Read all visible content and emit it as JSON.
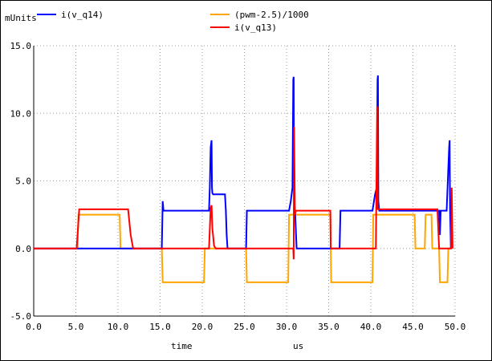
{
  "chart_data": {
    "type": "line",
    "ylabel": "mUnits",
    "xlabel": "time",
    "xunit": "us",
    "xlim": [
      0,
      50
    ],
    "ylim": [
      -5,
      15
    ],
    "xticks": [
      0,
      5,
      10,
      15,
      20,
      25,
      30,
      35,
      40,
      45,
      50
    ],
    "yticks": [
      -5,
      0,
      5,
      10,
      15
    ],
    "xtick_labels": [
      "0.0",
      "5.0",
      "10.0",
      "15.0",
      "20.0",
      "25.0",
      "30.0",
      "35.0",
      "40.0",
      "45.0",
      "50.0"
    ],
    "ytick_labels": [
      "-5.0",
      "0.0",
      "5.0",
      "10.0",
      "15.0"
    ],
    "grid": true,
    "legend_position": "top",
    "series": [
      {
        "name": "(pwm-2.5)/1000",
        "color": "#ffa500",
        "x": [
          0,
          5.2,
          5.3,
          10.2,
          10.3,
          15.2,
          15.3,
          20.2,
          20.3,
          25.2,
          25.3,
          30.2,
          30.3,
          35.2,
          35.3,
          40.2,
          40.3,
          45.2,
          45.3,
          46.4,
          46.5,
          47.2,
          47.3,
          48.1,
          48.2,
          49.1,
          49.2,
          49.6
        ],
        "y": [
          0,
          0,
          2.5,
          2.5,
          0,
          0,
          -2.5,
          -2.5,
          0,
          0,
          -2.5,
          -2.5,
          2.5,
          2.5,
          -2.5,
          -2.5,
          2.5,
          2.5,
          0,
          0,
          2.5,
          2.5,
          0,
          0,
          -2.5,
          -2.5,
          0,
          0
        ]
      },
      {
        "name": "i(v_q14)",
        "color": "#0000ff",
        "x": [
          0,
          15.2,
          15.3,
          15.4,
          20.8,
          20.9,
          21.0,
          21.1,
          21.15,
          21.2,
          21.3,
          22.7,
          22.8,
          22.9,
          23.0,
          25.2,
          25.3,
          25.4,
          30.3,
          30.5,
          30.7,
          30.8,
          30.85,
          30.9,
          31.0,
          31.2,
          35.2,
          35.3,
          36.3,
          36.4,
          36.5,
          40.2,
          40.5,
          40.7,
          40.8,
          40.85,
          40.9,
          41.0,
          41.2,
          45.2,
          45.3,
          48.1,
          48.2,
          48.3,
          49.0,
          49.3,
          49.35,
          49.4,
          49.5
        ],
        "y": [
          0,
          0,
          3.5,
          2.8,
          2.8,
          4.5,
          7.5,
          8.0,
          4.5,
          4.1,
          4.0,
          4.0,
          2.8,
          1.0,
          0,
          0,
          2.8,
          2.8,
          2.8,
          3.5,
          4.5,
          12.5,
          12.7,
          3.5,
          2.9,
          0,
          0,
          0,
          0,
          2.8,
          2.8,
          2.8,
          4.0,
          4.5,
          12.5,
          12.8,
          3.5,
          2.8,
          2.8,
          2.8,
          2.8,
          2.8,
          1.0,
          2.8,
          2.8,
          7.5,
          8.0,
          3.0,
          0
        ]
      },
      {
        "name": "i(v_q13)",
        "color": "#ff0000",
        "x": [
          0,
          5.1,
          5.4,
          11.2,
          11.5,
          11.8,
          20.8,
          21.0,
          21.1,
          21.2,
          21.4,
          21.6,
          30.8,
          30.85,
          30.9,
          31.0,
          31.1,
          35.2,
          35.25,
          40.6,
          40.75,
          40.8,
          40.85,
          41.0,
          45.2,
          45.3,
          47.9,
          48.1,
          49.5,
          49.6,
          49.7
        ],
        "y": [
          0,
          0,
          2.9,
          2.9,
          1.0,
          0,
          0,
          3.0,
          3.2,
          1.5,
          0.2,
          0,
          0,
          -0.8,
          9.0,
          2.5,
          2.8,
          2.8,
          0,
          0,
          10.5,
          3.0,
          2.9,
          2.9,
          2.9,
          2.9,
          2.9,
          0,
          0,
          4.5,
          0
        ]
      }
    ]
  }
}
